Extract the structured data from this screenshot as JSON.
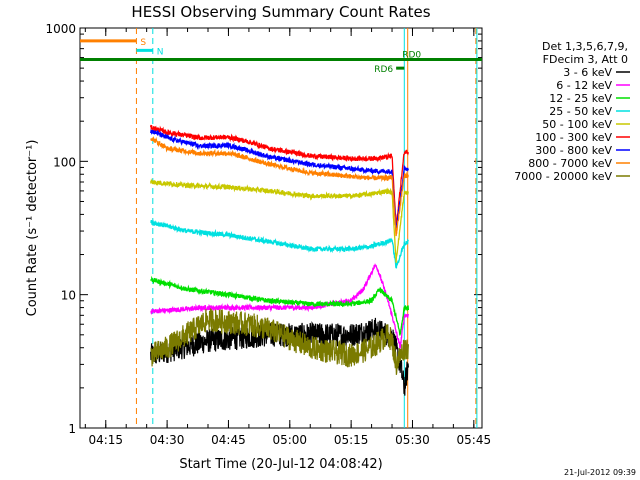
{
  "chart_data": {
    "type": "line",
    "title": "HESSI Observing Summary Count Rates",
    "xlabel": "Start Time (20-Jul-12 04:08:42)",
    "ylabel": "Count Rate (s⁻¹ detector⁻¹)",
    "yscale": "log",
    "ylim": [
      1,
      1000
    ],
    "xlim": [
      "04:08:42",
      "05:47:00"
    ],
    "x_ticks": [
      "04:15",
      "04:30",
      "04:45",
      "05:00",
      "05:15",
      "05:30",
      "05:45"
    ],
    "y_ticks": [
      "1",
      "10",
      "100",
      "1000"
    ],
    "legend_header": [
      "Det 1,3,5,6,7,9,",
      "FDecim 3, Att 0"
    ],
    "legend_position": "right",
    "timestamp": "21-Jul-2012 09:39",
    "series": [
      {
        "name": "3 - 6 keV",
        "color": "#000000",
        "x": [
          "04:26",
          "04:40",
          "04:55",
          "05:05",
          "05:15",
          "05:21",
          "05:24",
          "05:25",
          "05:27",
          "05:28",
          "05:29"
        ],
        "y": [
          3.5,
          4.5,
          5,
          5,
          5,
          5.5,
          5,
          5,
          3,
          2,
          3
        ]
      },
      {
        "name": "6 - 12 keV",
        "color": "#ff00ff",
        "x": [
          "04:26",
          "04:40",
          "04:55",
          "05:05",
          "05:15",
          "05:18",
          "05:21",
          "05:22",
          "05:24",
          "05:25",
          "05:27",
          "05:28",
          "05:29"
        ],
        "y": [
          7.5,
          8,
          8,
          8,
          9,
          11,
          17,
          14,
          9,
          7,
          4,
          7,
          7
        ]
      },
      {
        "name": "12 - 25 keV",
        "color": "#00e000",
        "x": [
          "04:26",
          "04:35",
          "04:45",
          "04:55",
          "05:05",
          "05:15",
          "05:20",
          "05:22",
          "05:24",
          "05:25",
          "05:27",
          "05:28",
          "05:29"
        ],
        "y": [
          13,
          11,
          10,
          9,
          8.5,
          8.5,
          9,
          11,
          9.5,
          9,
          5,
          8,
          8
        ]
      },
      {
        "name": "25 - 50 keV",
        "color": "#00e0e0",
        "x": [
          "04:26",
          "04:35",
          "04:45",
          "04:55",
          "05:05",
          "05:15",
          "05:20",
          "05:24",
          "05:25",
          "05:26",
          "05:28",
          "05:29"
        ],
        "y": [
          35,
          30,
          28,
          25,
          22,
          22,
          23,
          25,
          26,
          16,
          24,
          25
        ]
      },
      {
        "name": "50 - 100 keV",
        "color": "#c8c800",
        "x": [
          "04:26",
          "04:35",
          "04:45",
          "04:55",
          "05:05",
          "05:15",
          "05:20",
          "05:24",
          "05:25",
          "05:26",
          "05:28",
          "05:29"
        ],
        "y": [
          70,
          66,
          64,
          60,
          55,
          55,
          57,
          60,
          58,
          18,
          58,
          58
        ]
      },
      {
        "name": "100 - 300 keV",
        "color": "#ff0000",
        "x": [
          "04:26",
          "04:30",
          "04:38",
          "04:45",
          "04:50",
          "04:55",
          "05:05",
          "05:15",
          "05:20",
          "05:24",
          "05:25",
          "05:26",
          "05:28",
          "05:29"
        ],
        "y": [
          180,
          165,
          150,
          152,
          140,
          125,
          110,
          105,
          105,
          108,
          110,
          32,
          118,
          118
        ]
      },
      {
        "name": "300 - 800 keV",
        "color": "#0000ff",
        "x": [
          "04:26",
          "04:30",
          "04:38",
          "04:45",
          "04:50",
          "04:55",
          "05:05",
          "05:15",
          "05:20",
          "05:24",
          "05:25",
          "05:26",
          "05:28",
          "05:29"
        ],
        "y": [
          170,
          150,
          130,
          132,
          120,
          108,
          95,
          88,
          85,
          84,
          85,
          30,
          88,
          88
        ]
      },
      {
        "name": "800 - 7000 keV",
        "color": "#ff8000",
        "x": [
          "04:26",
          "04:30",
          "04:38",
          "04:45",
          "04:50",
          "04:55",
          "05:05",
          "05:15",
          "05:20",
          "05:24",
          "05:25",
          "05:26",
          "05:28",
          "05:29"
        ],
        "y": [
          150,
          125,
          115,
          115,
          105,
          95,
          82,
          77,
          75,
          75,
          76,
          28,
          78,
          78
        ]
      },
      {
        "name": "7000 - 20000 keV",
        "color": "#7a7a00",
        "x": [
          "04:26",
          "04:30",
          "04:40",
          "04:50",
          "04:55",
          "05:05",
          "05:15",
          "05:20",
          "05:24",
          "05:25",
          "05:26",
          "05:28",
          "05:29"
        ],
        "y": [
          3.5,
          4,
          6.5,
          6,
          5.5,
          4,
          3.5,
          4,
          5,
          4.5,
          3,
          4,
          4
        ]
      }
    ],
    "annotations": [
      {
        "label": "S",
        "color": "#ff8000",
        "x_start": "04:08:42",
        "x_end": "04:22:30",
        "y": 800,
        "boundary": "04:22:30"
      },
      {
        "label": "N",
        "color": "#00e0e0",
        "x_start": "04:22:30",
        "x_end": "04:26:30",
        "y": 680,
        "boundary": "04:26:30"
      },
      {
        "label": "RD0",
        "color": "#008000",
        "x_start": "04:08:42",
        "x_end": "05:47:00",
        "y": 580
      },
      {
        "label": "RD6",
        "color": "#008000",
        "x_start": "05:26:00",
        "x_end": "05:28:00",
        "y": 500
      }
    ],
    "vertical_markers": [
      {
        "x": "04:22:30",
        "color": "#ff8000",
        "style": "dashed"
      },
      {
        "x": "04:26:30",
        "color": "#00e0e0",
        "style": "dashed"
      },
      {
        "x": "05:28:00",
        "color": "#00e0e0",
        "style": "solid"
      },
      {
        "x": "05:28:50",
        "color": "#ff8000",
        "style": "solid"
      },
      {
        "x": "05:45:30",
        "color": "#ff8000",
        "style": "dashed"
      },
      {
        "x": "05:45:45",
        "color": "#00e0e0",
        "style": "solid"
      }
    ]
  }
}
